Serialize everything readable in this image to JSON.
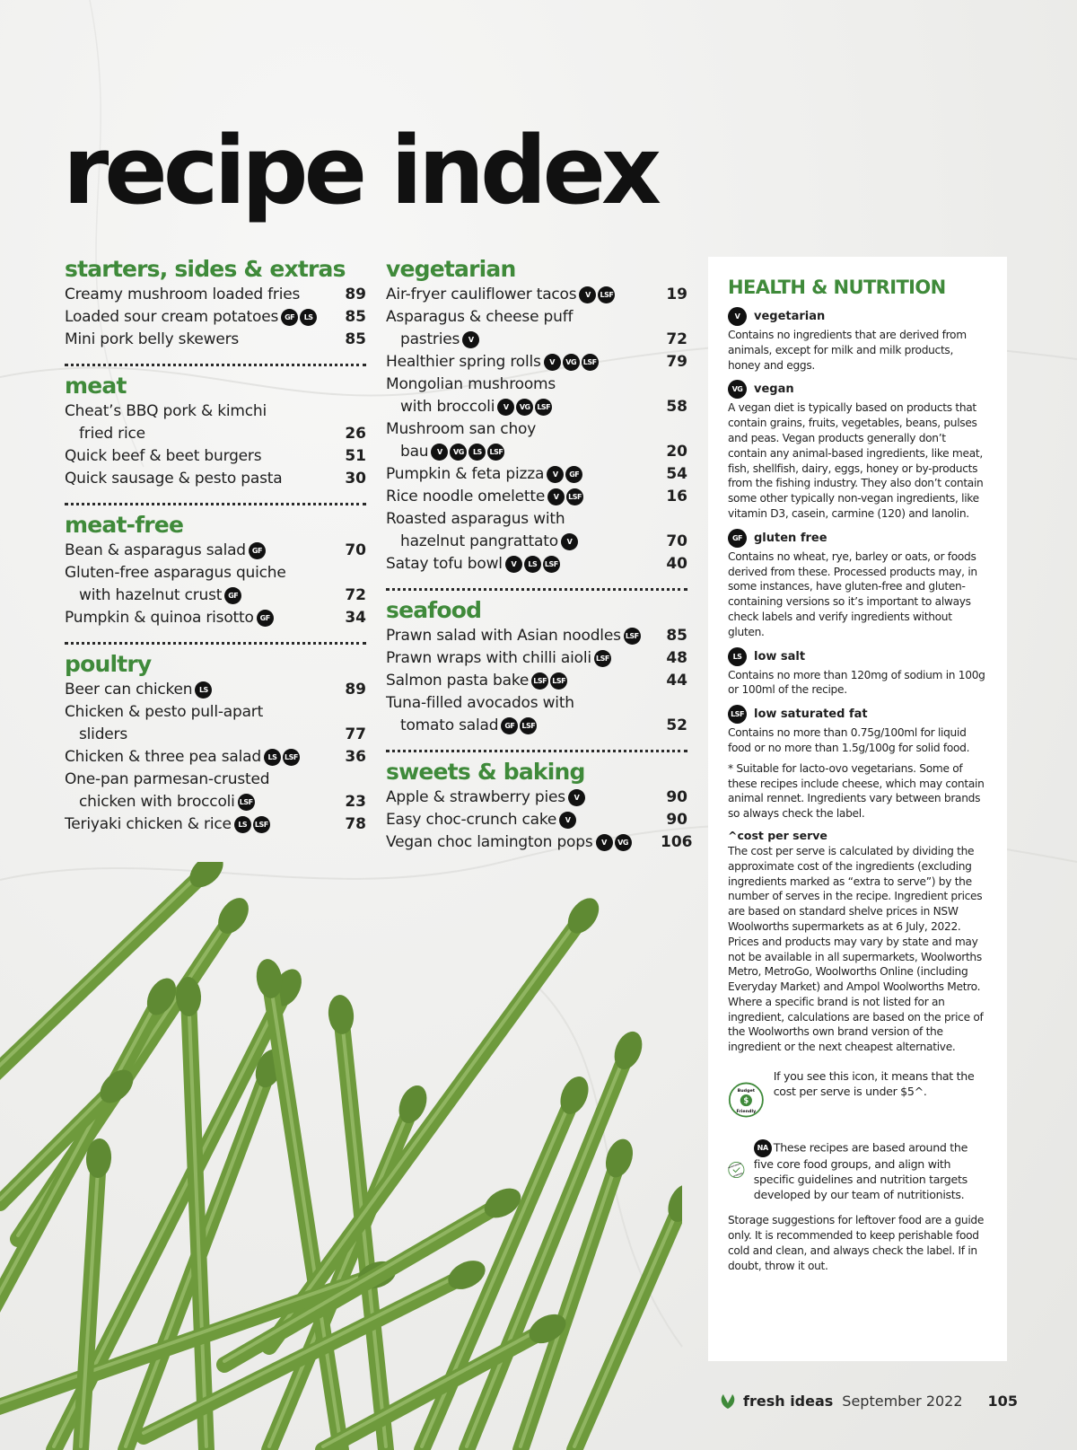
{
  "title": "recipe index",
  "columns": [
    [
      {
        "title": "starters, sides & extras",
        "items": [
          {
            "lines": [
              "Creamy mushroom loaded fries"
            ],
            "badges": [],
            "page": "89"
          },
          {
            "lines": [
              "Loaded sour cream potatoes"
            ],
            "badges": [
              "GF",
              "LS"
            ],
            "page": "85"
          },
          {
            "lines": [
              "Mini pork belly skewers"
            ],
            "badges": [],
            "page": "85"
          }
        ]
      },
      {
        "title": "meat",
        "items": [
          {
            "lines": [
              "Cheat’s BBQ pork & kimchi",
              "fried rice"
            ],
            "badges": [],
            "page": "26"
          },
          {
            "lines": [
              "Quick beef & beet burgers"
            ],
            "badges": [],
            "page": "51"
          },
          {
            "lines": [
              "Quick sausage & pesto pasta"
            ],
            "badges": [],
            "page": "30"
          }
        ]
      },
      {
        "title": "meat-free",
        "items": [
          {
            "lines": [
              "Bean & asparagus salad"
            ],
            "badges": [
              "GF"
            ],
            "page": "70"
          },
          {
            "lines": [
              "Gluten-free asparagus quiche",
              "with hazelnut crust"
            ],
            "badges": [
              "GF"
            ],
            "page": "72"
          },
          {
            "lines": [
              "Pumpkin & quinoa risotto"
            ],
            "badges": [
              "GF"
            ],
            "page": "34"
          }
        ]
      },
      {
        "title": "poultry",
        "items": [
          {
            "lines": [
              "Beer can chicken"
            ],
            "badges": [
              "LS"
            ],
            "page": "89"
          },
          {
            "lines": [
              "Chicken & pesto pull-apart",
              "sliders"
            ],
            "badges": [],
            "page": "77"
          },
          {
            "lines": [
              "Chicken & three pea salad"
            ],
            "badges": [
              "LS",
              "LSF"
            ],
            "page": "36"
          },
          {
            "lines": [
              "One-pan parmesan-crusted",
              "chicken with broccoli"
            ],
            "badges": [
              "LSF"
            ],
            "page": "23"
          },
          {
            "lines": [
              "Teriyaki chicken & rice"
            ],
            "badges": [
              "LS",
              "LSF"
            ],
            "page": "78"
          }
        ]
      }
    ],
    [
      {
        "title": "vegetarian",
        "items": [
          {
            "lines": [
              "Air-fryer cauliflower tacos"
            ],
            "badges": [
              "V",
              "LSF"
            ],
            "page": "19"
          },
          {
            "lines": [
              "Asparagus & cheese puff",
              "pastries"
            ],
            "badges": [
              "V"
            ],
            "page": "72"
          },
          {
            "lines": [
              "Healthier spring rolls"
            ],
            "badges": [
              "V",
              "VG",
              "LSF"
            ],
            "page": "79"
          },
          {
            "lines": [
              "Mongolian mushrooms",
              "with broccoli"
            ],
            "badges": [
              "V",
              "VG",
              "LSF"
            ],
            "page": "58"
          },
          {
            "lines": [
              "Mushroom san choy",
              "bau"
            ],
            "badges": [
              "V",
              "VG",
              "LS",
              "LSF"
            ],
            "page": "20"
          },
          {
            "lines": [
              "Pumpkin & feta pizza"
            ],
            "badges": [
              "V",
              "GF"
            ],
            "page": "54"
          },
          {
            "lines": [
              "Rice noodle omelette"
            ],
            "badges": [
              "V",
              "LSF"
            ],
            "page": "16"
          },
          {
            "lines": [
              "Roasted asparagus with",
              "hazelnut pangrattato"
            ],
            "badges": [
              "V"
            ],
            "page": "70"
          },
          {
            "lines": [
              "Satay tofu bowl"
            ],
            "badges": [
              "V",
              "LS",
              "LSF"
            ],
            "page": "40"
          }
        ]
      },
      {
        "title": "seafood",
        "items": [
          {
            "lines": [
              "Prawn salad with Asian noodles"
            ],
            "badges": [
              "LSF"
            ],
            "page": "85"
          },
          {
            "lines": [
              "Prawn wraps with chilli aioli"
            ],
            "badges": [
              "LSF"
            ],
            "page": "48"
          },
          {
            "lines": [
              "Salmon pasta bake"
            ],
            "badges": [
              "LSF",
              "LSF"
            ],
            "page": "44"
          },
          {
            "lines": [
              "Tuna-filled avocados with",
              "tomato salad"
            ],
            "badges": [
              "GF",
              "LSF"
            ],
            "page": "52"
          }
        ]
      },
      {
        "title": "sweets & baking",
        "items": [
          {
            "lines": [
              "Apple & strawberry pies"
            ],
            "badges": [
              "V"
            ],
            "page": "90"
          },
          {
            "lines": [
              "Easy choc-crunch cake"
            ],
            "badges": [
              "V"
            ],
            "page": "90"
          },
          {
            "lines": [
              "Vegan choc lamington pops"
            ],
            "badges": [
              "V",
              "VG"
            ],
            "page": "106"
          }
        ]
      }
    ]
  ],
  "panel": {
    "title": "HEALTH & NUTRITION",
    "definitions": [
      {
        "badge": "V",
        "label": "vegetarian",
        "desc": "Contains no ingredients that are derived from animals, except for milk and milk products, honey and eggs."
      },
      {
        "badge": "VG",
        "label": "vegan",
        "desc": "A vegan diet is typically based on products that contain grains, fruits, vegetables, beans, pulses and peas. Vegan products generally don’t contain any animal-based ingredients, like meat, fish, shellfish, dairy, eggs, honey or by-products from the fishing industry. They also don’t contain some other typically non-vegan ingredients, like vitamin D3, casein, carmine (120) and lanolin."
      },
      {
        "badge": "GF",
        "label": "gluten free",
        "desc": "Contains no wheat, rye, barley or oats, or foods derived from these. Processed products may, in some instances, have gluten-free and gluten-containing versions so it’s important to always check labels and verify ingredients without gluten."
      },
      {
        "badge": "LS",
        "label": "low salt",
        "desc": "Contains no more than 120mg of sodium in 100g or 100ml of the recipe."
      },
      {
        "badge": "LSF",
        "label": "low saturated fat",
        "desc": "Contains no more than 0.75g/100ml for liquid food or no more than 1.5g/100g for solid food."
      }
    ],
    "lacto_note": "* Suitable for lacto-ovo vegetarians. Some of these recipes include cheese, which may contain animal rennet. Ingredients vary between brands so always check the label.",
    "cost_head": "^cost per serve",
    "cost_text": "The cost per serve is calculated by dividing the approximate cost of the ingredients (excluding ingredients marked as “extra to serve”) by the number of serves in the recipe. Ingredient prices are based on standard shelve prices in NSW Woolworths supermarkets as at 6 July, 2022. Prices and products may vary by state and may not be available in all supermarkets, Woolworths Metro, MetroGo, Woolworths Online (including Everyday Market) and Ampol Woolworths Metro. Where a specific brand is not listed for an ingredient, calculations are based on the price of the Woolworths own brand version of the ingredient or the next cheapest alternative.",
    "budget_icon_text": [
      "Budget",
      "$",
      "Friendly"
    ],
    "budget_text": "If you see this icon, it means that the cost per serve is under $5^.",
    "approved_icon_text": [
      "NUTRITIONALLY",
      "APPROVED"
    ],
    "na_badge": "NA",
    "na_text": "These recipes are based around the five core food groups, and align with specific guidelines and nutrition targets developed by our team of nutritionists.",
    "storage_text": "Storage suggestions for leftover food are a guide only. It is recommended to keep perishable food cold and clean, and always check the label. If in doubt, throw it out."
  },
  "footer": {
    "brand": "fresh ideas",
    "date": "September 2022",
    "page": "105"
  },
  "colors": {
    "accent": "#3f8a3a",
    "badge": "#111111",
    "asparagus": "#6e9a3c"
  }
}
